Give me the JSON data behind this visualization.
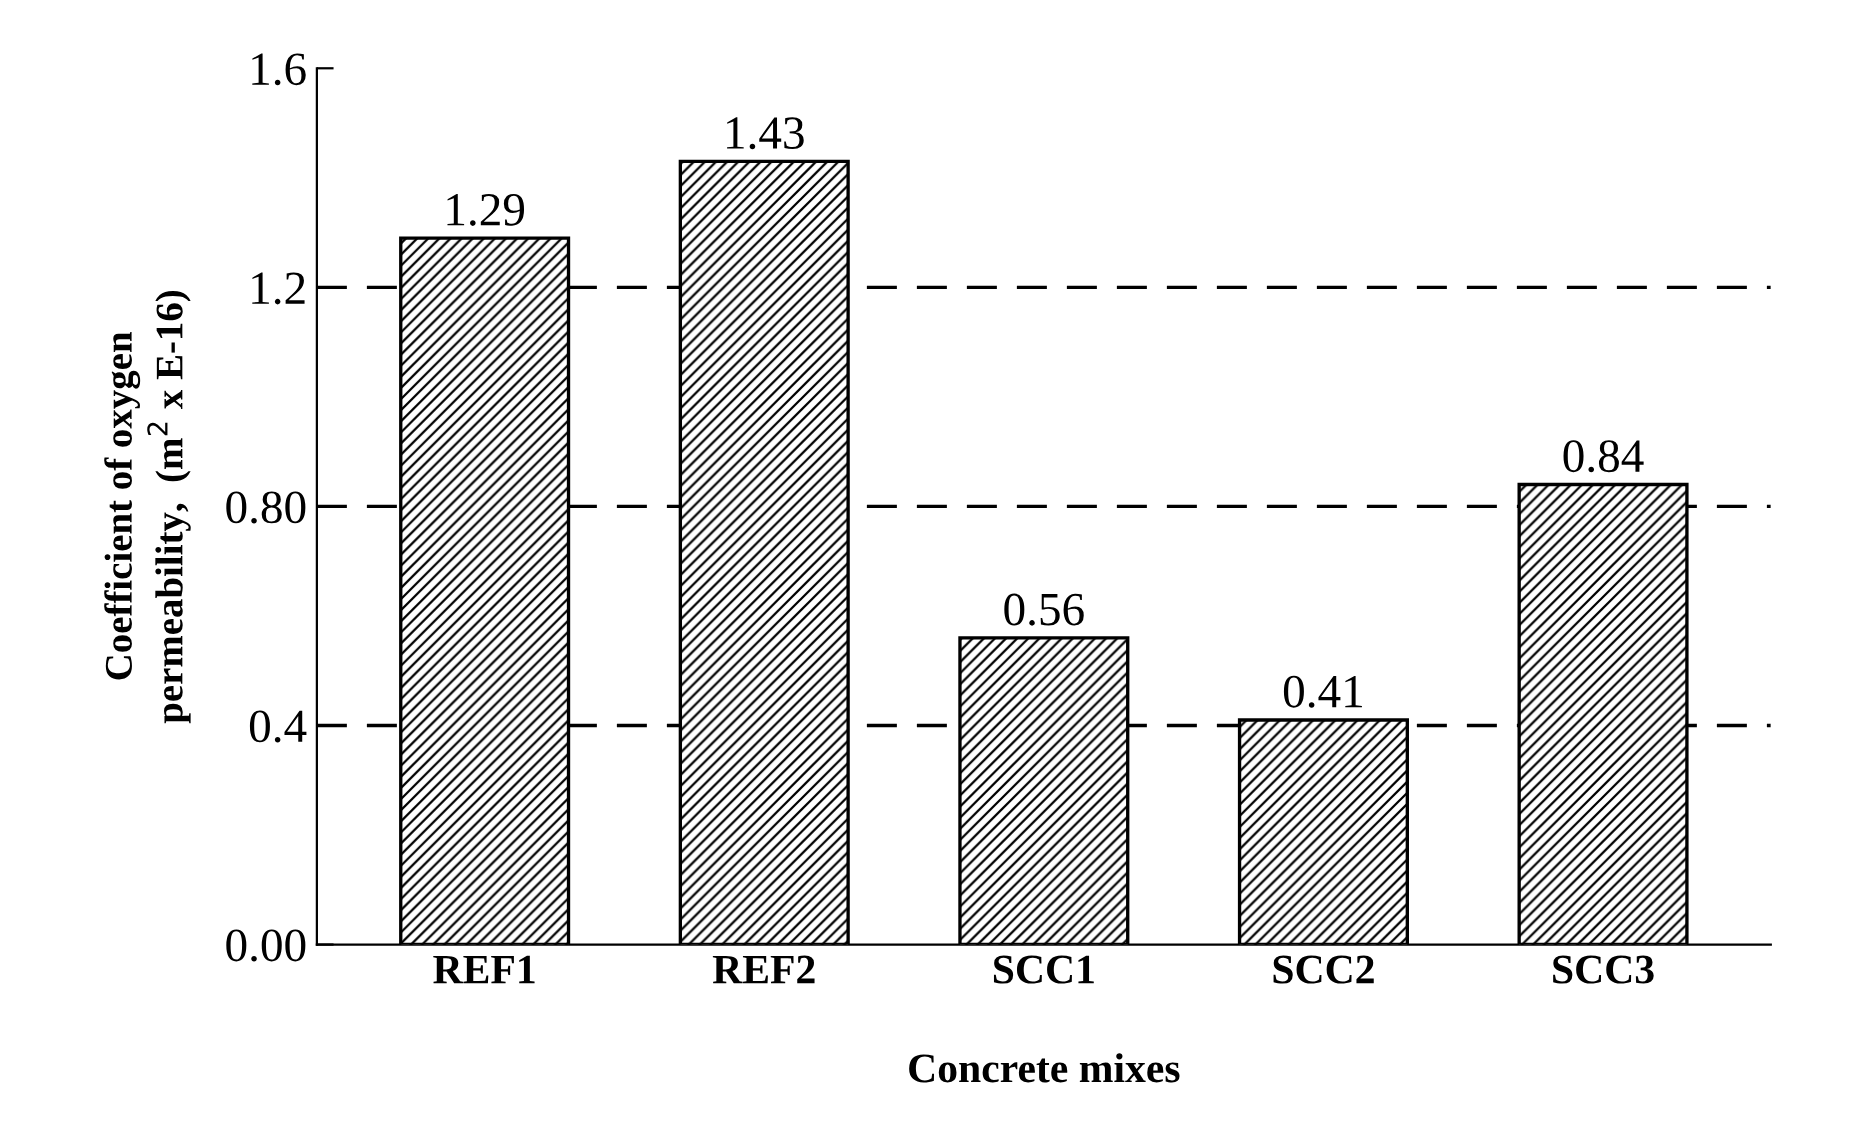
{
  "chart_data": {
    "type": "bar",
    "xlabel": "Concrete mixes",
    "ylabel": "Coefficient of oxygen\npermeability,  (m$^{2}$ x E-16)",
    "categories": [
      "REF1",
      "REF2",
      "SCC1",
      "SCC2",
      "SCC3"
    ],
    "values": [
      1.29,
      1.43,
      0.56,
      0.41,
      0.84
    ],
    "color": "#000000",
    "data_labels": true,
    "ylim": [
      0,
      1.6
    ],
    "yticks": [
      {
        "value": 0,
        "label": "0.00"
      },
      0.4,
      {
        "value": 0.8,
        "label": "0.80"
      },
      1.2,
      1.6
    ],
    "ref_lines": [
      {
        "axis": "y",
        "value": 0.4,
        "color": "#000000",
        "line_style": "dashed"
      },
      {
        "axis": "y",
        "value": 0.8,
        "color": "#000000",
        "line_style": "dashed"
      },
      {
        "axis": "y",
        "value": 1.2,
        "color": "#000000",
        "line_style": "dashed"
      }
    ],
    "grid": false
  }
}
